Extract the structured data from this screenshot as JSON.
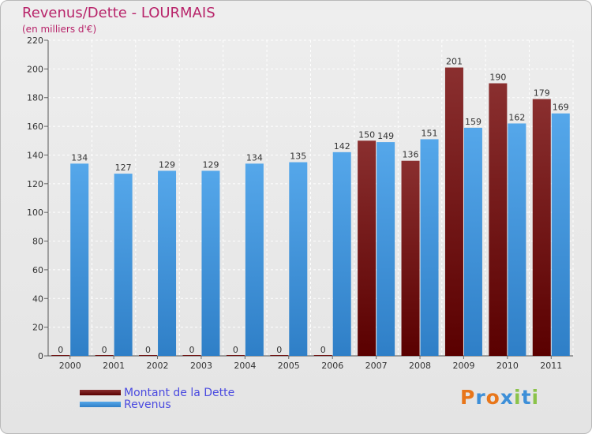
{
  "header": {
    "title": "Revenus/Dette - LOURMAIS",
    "subtitle": "(en milliers d'€)"
  },
  "colors": {
    "dette": "#6e0a0a",
    "revenus": "#3d8fd8",
    "title": "#b8246a",
    "legend_text": "#4a4ae0"
  },
  "logo": {
    "letters": [
      "P",
      "r",
      "o",
      "x",
      "i",
      "t",
      "i"
    ],
    "colors": [
      "#e8761a",
      "#3d8fd8",
      "#e8761a",
      "#3d8fd8",
      "#8bc34a",
      "#3d8fd8",
      "#8bc34a"
    ]
  },
  "chart_data": {
    "type": "bar",
    "title": "Revenus/Dette - LOURMAIS",
    "subtitle": "(en milliers d'€)",
    "xlabel": "",
    "ylabel": "",
    "categories": [
      "2000",
      "2001",
      "2002",
      "2003",
      "2004",
      "2005",
      "2006",
      "2007",
      "2008",
      "2009",
      "2010",
      "2011"
    ],
    "series": [
      {
        "name": "Montant de la Dette",
        "color": "#6e0a0a",
        "values": [
          0,
          0,
          0,
          0,
          0,
          0,
          0,
          150,
          136,
          201,
          190,
          179
        ]
      },
      {
        "name": "Revenus",
        "color": "#3d8fd8",
        "values": [
          134,
          127,
          129,
          129,
          134,
          135,
          142,
          149,
          151,
          159,
          162,
          169
        ]
      }
    ],
    "ylim": [
      0,
      220
    ],
    "yticks": [
      0,
      20,
      40,
      60,
      80,
      100,
      120,
      140,
      160,
      180,
      200,
      220
    ],
    "grid": true,
    "legend_position": "bottom-left"
  }
}
